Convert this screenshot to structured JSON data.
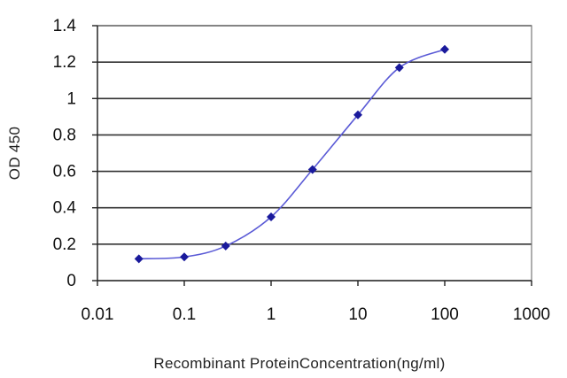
{
  "chart_data": {
    "type": "line",
    "xscale": "log",
    "xlim": [
      0.01,
      1000
    ],
    "ylim": [
      0,
      1.4
    ],
    "x_ticks": [
      "0.01",
      "0.1",
      "1",
      "10",
      "100",
      "1000"
    ],
    "y_ticks": [
      "0",
      "0.2",
      "0.4",
      "0.6",
      "0.8",
      "1",
      "1.2",
      "1.4"
    ],
    "xlabel": "Recombinant ProteinConcentration(ng/ml)",
    "ylabel": "OD 450",
    "grid": "horizontal",
    "legend": "none",
    "series": [
      {
        "color": "#1a1a9c",
        "line_color": "#5a5ad6",
        "x": [
          0.03,
          0.1,
          0.3,
          1,
          3,
          10,
          30,
          100
        ],
        "y": [
          0.12,
          0.13,
          0.19,
          0.35,
          0.61,
          0.91,
          1.17,
          1.27
        ]
      }
    ]
  }
}
